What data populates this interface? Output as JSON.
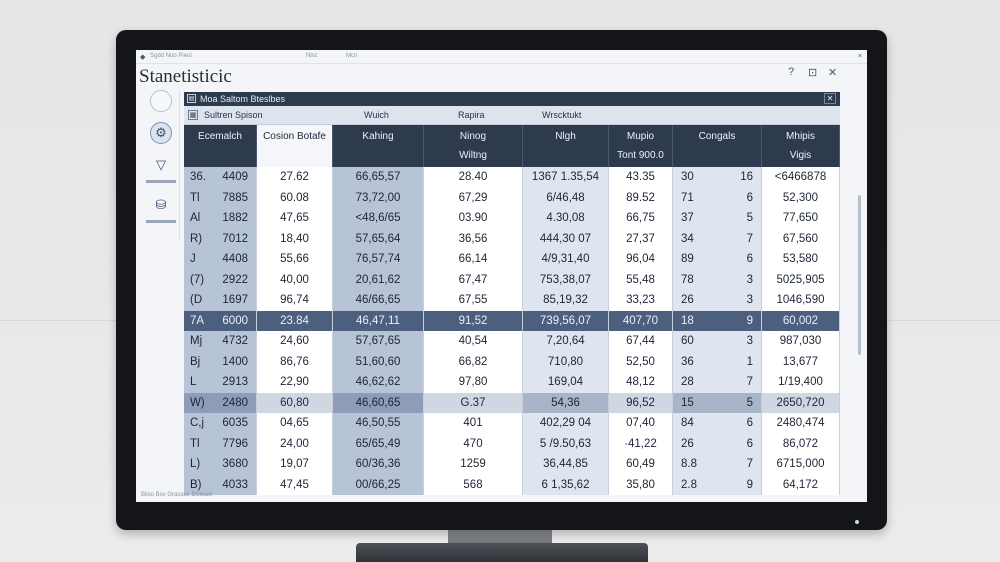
{
  "app": {
    "title": "Stanetisticic"
  },
  "topbar": {
    "text_left": "Sgdd  Nuo    Pieui",
    "menu_items": [
      "Nisc",
      "Mcn"
    ]
  },
  "window_controls": [
    "?",
    "⊡",
    "✕"
  ],
  "panel": {
    "title": "Moa Saltom Bteslbes",
    "close": "✕",
    "subheader": {
      "col1": "Sultren Spison",
      "col2": "Wuich",
      "col3": "Rapira",
      "col4": "Wrscktukt"
    }
  },
  "columns": [
    {
      "line1": "Ecemalch",
      "line2": ""
    },
    {
      "line1": "Cosion Botafe",
      "line2": ""
    },
    {
      "line1": "Kahing",
      "line2": ""
    },
    {
      "line1": "Ninog",
      "line2": "Wiltng"
    },
    {
      "line1": "Nlgh",
      "line2": ""
    },
    {
      "line1": "Mupio",
      "line2": "Tont 900.0"
    },
    {
      "line1": "Congals",
      "line2": ""
    },
    {
      "line1": "Mhipis",
      "line2": "Vigis"
    }
  ],
  "rows": [
    {
      "c1a": "36.",
      "c1b": "4409",
      "c2": "27.62",
      "c3": "66,65,57",
      "c4": "28.40",
      "c5": "1367 1.35,54",
      "c6": "43.35",
      "c7a": "30",
      "c7b": "16",
      "c8": "<6466878"
    },
    {
      "c1a": "Tl",
      "c1b": "7885",
      "c2": "60.08",
      "c3": "73,72,00",
      "c4": "67,29",
      "c5": "6/46,48",
      "c6": "89.52",
      "c7a": "71",
      "c7b": "6",
      "c8": "52,300"
    },
    {
      "c1a": "Al",
      "c1b": "1882",
      "c2": "47,65",
      "c3": "<48,6/65",
      "c4": "03.90",
      "c5": "4.30,08",
      "c6": "66,75",
      "c7a": "37",
      "c7b": "5",
      "c8": "77,650"
    },
    {
      "c1a": "R)",
      "c1b": "7012",
      "c2": "18,40",
      "c3": "57,65,64",
      "c4": "36,56",
      "c5": "444,30 07",
      "c6": "27,37",
      "c7a": "34",
      "c7b": "7",
      "c8": "67,560"
    },
    {
      "c1a": "J",
      "c1b": "4408",
      "c2": "55,66",
      "c3": "76,57,74",
      "c4": "66,14",
      "c5": "4/9,31,40",
      "c6": "96,04",
      "c7a": "89",
      "c7b": "6",
      "c8": "53,580"
    },
    {
      "c1a": "(7)",
      "c1b": "2922",
      "c2": "40,00",
      "c3": "20,61,62",
      "c4": "67,47",
      "c5": "753,38,07",
      "c6": "55,48",
      "c7a": "78",
      "c7b": "3",
      "c8": "5025,905"
    },
    {
      "c1a": "(D",
      "c1b": "1697",
      "c2": "96,74",
      "c3": "46/66,65",
      "c4": "67,55",
      "c5": "85,19,32",
      "c6": "33,23",
      "c7a": "26",
      "c7b": "3",
      "c8": "1046,590"
    },
    {
      "c1a": "7A",
      "c1b": "6000",
      "c2": "23.84",
      "c3": "46,47,11",
      "c4": "91,52",
      "c5": "739,56,07",
      "c6": "407,70",
      "c7a": "18",
      "c7b": "9",
      "c8": "60,002",
      "selected": true
    },
    {
      "c1a": "Mj",
      "c1b": "4732",
      "c2": "24,60",
      "c3": "57,67,65",
      "c4": "40,54",
      "c5": "7,20,64",
      "c6": "67,44",
      "c7a": "60",
      "c7b": "3",
      "c8": "987,030"
    },
    {
      "c1a": "Bj",
      "c1b": "1400",
      "c2": "86,76",
      "c3": "51,60,60",
      "c4": "66,82",
      "c5": "710,80",
      "c6": "52,50",
      "c7a": "36",
      "c7b": "1",
      "c8": "13,677"
    },
    {
      "c1a": "L",
      "c1b": "2913",
      "c2": "22,90",
      "c3": "46,62,62",
      "c4": "97,80",
      "c5": "169,04",
      "c6": "48,12",
      "c7a": "28",
      "c7b": "7",
      "c8": "1/19,400"
    },
    {
      "c1a": "W)",
      "c1b": "2480",
      "c2": "60,80",
      "c3": "46,60,65",
      "c4": "G.37",
      "c5": "54,36",
      "c6": "96,52",
      "c7a": "15",
      "c7b": "5",
      "c8": "2650,720",
      "selected2": true
    },
    {
      "c1a": "C,j",
      "c1b": "6035",
      "c2": "04,65",
      "c3": "46,50,55",
      "c4": "401",
      "c5": "402,29 04",
      "c6": "07,40",
      "c7a": "84",
      "c7b": "6",
      "c8": "2480,474"
    },
    {
      "c1a": "Tl",
      "c1b": "7796",
      "c2": "24,00",
      "c3": "65/65,49",
      "c4": "470",
      "c5": "5 /9.50,63",
      "c6": "·41,22",
      "c7a": "26",
      "c7b": "6",
      "c8": "86,072"
    },
    {
      "c1a": "L)",
      "c1b": "3680",
      "c2": "19,07",
      "c3": "60/36,36",
      "c4": "1259",
      "c5": "36,44,85",
      "c6": "60,49",
      "c7a": "8.8",
      "c7b": "7",
      "c8": "6715,000"
    },
    {
      "c1a": "B)",
      "c1b": "4033",
      "c2": "47,45",
      "c3": "00/66,25",
      "c4": "568",
      "c5": "6 1,35,62",
      "c6": "35,80",
      "c7a": "2.8",
      "c7b": "9",
      "c8": "64,172"
    }
  ],
  "statusbar": {
    "text": "Bliso Bsv Grassec Bicteaxi"
  }
}
